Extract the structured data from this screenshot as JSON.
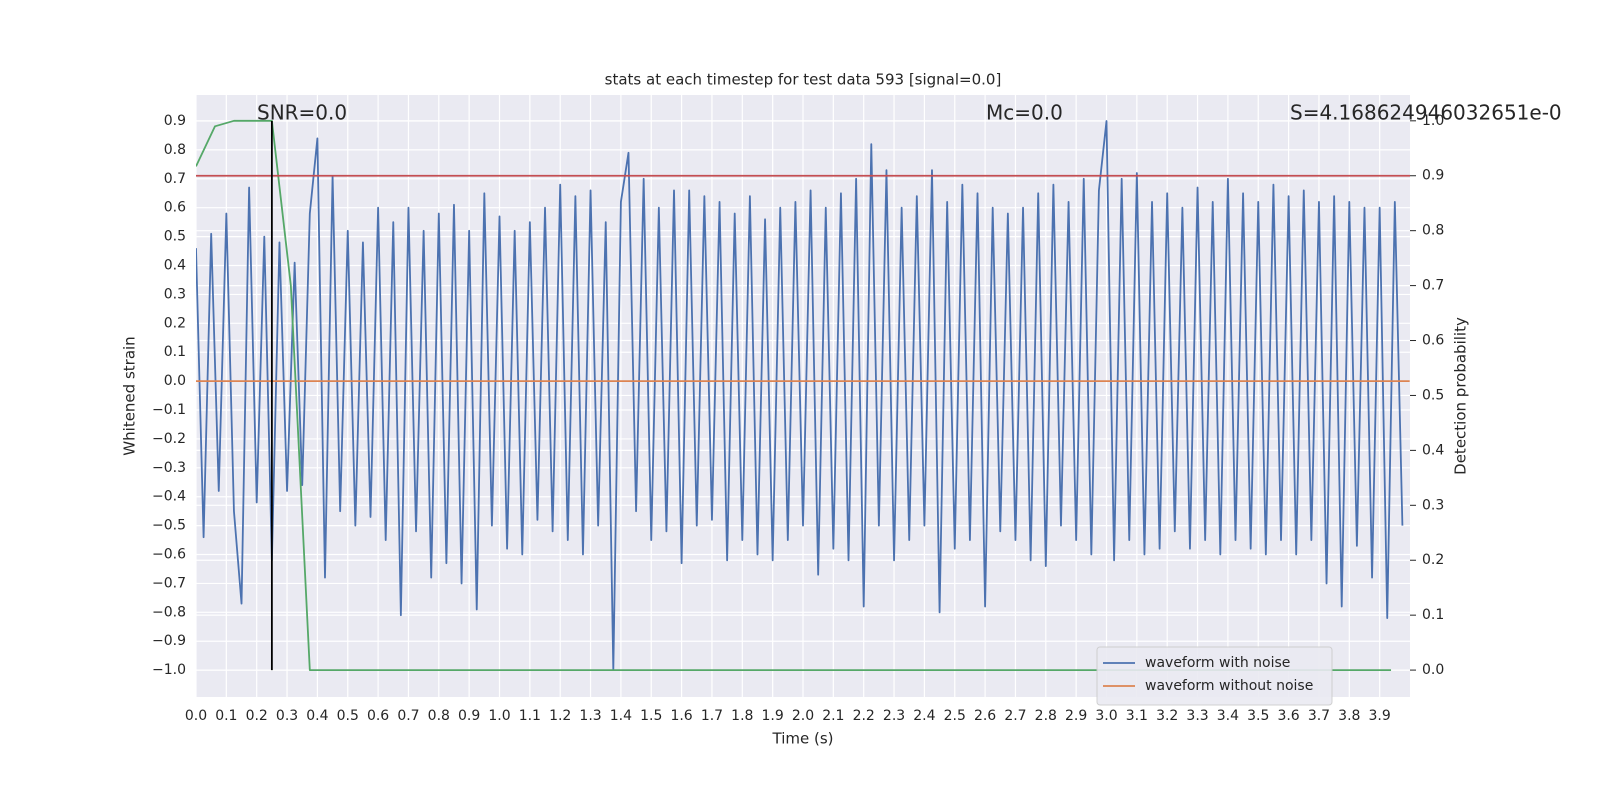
{
  "chart_data": {
    "type": "line",
    "title": "stats at each timestep for test data 593 [signal=0.0]",
    "xlabel": "Time (s)",
    "ylabel": "Whitened strain",
    "y2label": "Detection probability",
    "annotations": [
      {
        "text": "SNR=0.0"
      },
      {
        "text": "Mc=0.0"
      },
      {
        "text": "S=4.168624946032651e-0"
      }
    ],
    "xlim": [
      0,
      4.0
    ],
    "ylim": [
      -1.093,
      0.99
    ],
    "y2lim": [
      -0.049,
      1.047
    ],
    "xticks": [
      {
        "value": 0,
        "label": "0.0"
      },
      0.1,
      0.2,
      0.3,
      0.4,
      0.5,
      0.6,
      0.7,
      0.8,
      0.9,
      {
        "value": 1,
        "label": "1.0"
      },
      1.1,
      1.2,
      1.3,
      1.4,
      1.5,
      1.6,
      1.7,
      1.8,
      1.9,
      {
        "value": 2,
        "label": "2.0"
      },
      2.1,
      2.2,
      2.3,
      2.4,
      2.5,
      2.6,
      2.7,
      2.8,
      2.9,
      {
        "value": 3,
        "label": "3.0"
      },
      3.1,
      3.2,
      3.3,
      3.4,
      3.5,
      3.6,
      3.7,
      3.8,
      3.9
    ],
    "yticks": [
      {
        "value": -1,
        "label": "−1.0"
      },
      {
        "value": -0.9,
        "label": "−0.9"
      },
      {
        "value": -0.8,
        "label": "−0.8"
      },
      {
        "value": -0.7,
        "label": "−0.7"
      },
      {
        "value": -0.6,
        "label": "−0.6"
      },
      {
        "value": -0.5,
        "label": "−0.5"
      },
      {
        "value": -0.4,
        "label": "−0.4"
      },
      {
        "value": -0.3,
        "label": "−0.3"
      },
      {
        "value": -0.2,
        "label": "−0.2"
      },
      {
        "value": -0.1,
        "label": "−0.1"
      },
      {
        "value": 0,
        "label": "0.0"
      },
      0.1,
      0.2,
      0.3,
      0.4,
      0.5,
      0.6,
      0.7,
      0.8,
      0.9
    ],
    "y2ticks": [
      {
        "value": 0,
        "label": "0.0"
      },
      0.1,
      0.2,
      0.3,
      0.4,
      0.5,
      0.6,
      0.7,
      0.8,
      0.9,
      {
        "value": 1,
        "label": "1.0"
      }
    ],
    "grid": true,
    "legend": "lower right",
    "vline": {
      "x": 0.25,
      "ymin": -1.0,
      "ymax": 0.9,
      "color": "#000000"
    },
    "hline": {
      "y": 0.9,
      "axis": "y2",
      "color": "#c44e52"
    },
    "series": [
      {
        "name": "waveform with noise",
        "color": "#4c72b0",
        "x": [
          0,
          0.025,
          0.05,
          0.075,
          0.1,
          0.125,
          0.15,
          0.175,
          0.2,
          0.225,
          0.25,
          0.275,
          0.3,
          0.325,
          0.35,
          0.375,
          0.4,
          0.425,
          0.45,
          0.475,
          0.5,
          0.525,
          0.55,
          0.575,
          0.6,
          0.625,
          0.65,
          0.675,
          0.7,
          0.725,
          0.75,
          0.775,
          0.8,
          0.825,
          0.85,
          0.875,
          0.9,
          0.925,
          0.95,
          0.975,
          1,
          1.025,
          1.05,
          1.075,
          1.1,
          1.125,
          1.15,
          1.175,
          1.2,
          1.225,
          1.25,
          1.275,
          1.3,
          1.325,
          1.35,
          1.375,
          1.4,
          1.425,
          1.45,
          1.475,
          1.5,
          1.525,
          1.55,
          1.575,
          1.6,
          1.625,
          1.65,
          1.675,
          1.7,
          1.725,
          1.75,
          1.775,
          1.8,
          1.825,
          1.85,
          1.875,
          1.9,
          1.925,
          1.95,
          1.975,
          2,
          2.025,
          2.05,
          2.075,
          2.1,
          2.125,
          2.15,
          2.175,
          2.2,
          2.225,
          2.25,
          2.275,
          2.3,
          2.325,
          2.35,
          2.375,
          2.4,
          2.425,
          2.45,
          2.475,
          2.5,
          2.525,
          2.55,
          2.575,
          2.6,
          2.625,
          2.65,
          2.675,
          2.7,
          2.725,
          2.75,
          2.775,
          2.8,
          2.825,
          2.85,
          2.875,
          2.9,
          2.925,
          2.95,
          2.975,
          3,
          3.025,
          3.05,
          3.075,
          3.1,
          3.125,
          3.15,
          3.175,
          3.2,
          3.225,
          3.25,
          3.275,
          3.3,
          3.325,
          3.35,
          3.375,
          3.4,
          3.425,
          3.45,
          3.475,
          3.5,
          3.525,
          3.55,
          3.575,
          3.6,
          3.625,
          3.65,
          3.675,
          3.7,
          3.725,
          3.75,
          3.775,
          3.8,
          3.825,
          3.85,
          3.875,
          3.9,
          3.925,
          3.95,
          3.975
        ],
        "values": [
          0.46,
          -0.54,
          0.51,
          -0.38,
          0.58,
          -0.45,
          -0.77,
          0.67,
          -0.42,
          0.5,
          -0.62,
          0.48,
          -0.38,
          0.41,
          -0.36,
          0.58,
          0.84,
          -0.68,
          0.71,
          -0.45,
          0.52,
          -0.5,
          0.48,
          -0.47,
          0.6,
          -0.55,
          0.55,
          -0.81,
          0.6,
          -0.52,
          0.52,
          -0.68,
          0.58,
          -0.63,
          0.61,
          -0.7,
          0.52,
          -0.79,
          0.65,
          -0.5,
          0.57,
          -0.58,
          0.52,
          -0.6,
          0.55,
          -0.48,
          0.6,
          -0.52,
          0.68,
          -0.55,
          0.64,
          -0.6,
          0.66,
          -0.5,
          0.55,
          -1.0,
          0.62,
          0.79,
          -0.45,
          0.7,
          -0.55,
          0.6,
          -0.52,
          0.66,
          -0.63,
          0.66,
          -0.5,
          0.64,
          -0.48,
          0.62,
          -0.62,
          0.58,
          -0.55,
          0.64,
          -0.6,
          0.56,
          -0.62,
          0.6,
          -0.55,
          0.62,
          -0.5,
          0.66,
          -0.67,
          0.6,
          -0.58,
          0.65,
          -0.62,
          0.7,
          -0.78,
          0.82,
          -0.5,
          0.73,
          -0.62,
          0.6,
          -0.55,
          0.64,
          -0.5,
          0.73,
          -0.8,
          0.62,
          -0.58,
          0.68,
          -0.55,
          0.65,
          -0.78,
          0.6,
          -0.52,
          0.58,
          -0.55,
          0.6,
          -0.62,
          0.65,
          -0.64,
          0.68,
          -0.5,
          0.62,
          -0.55,
          0.7,
          -0.6,
          0.66,
          0.9,
          -0.62,
          0.7,
          -0.55,
          0.72,
          -0.6,
          0.62,
          -0.58,
          0.65,
          -0.52,
          0.6,
          -0.58,
          0.67,
          -0.55,
          0.62,
          -0.6,
          0.7,
          -0.55,
          0.65,
          -0.58,
          0.62,
          -0.6,
          0.68,
          -0.55,
          0.64,
          -0.6,
          0.66,
          -0.55,
          0.62,
          -0.7,
          0.64,
          -0.78,
          0.62,
          -0.57,
          0.6,
          -0.68,
          0.6,
          -0.82,
          0.62,
          -0.5
        ]
      },
      {
        "name": "waveform without noise",
        "color": "#dd8452",
        "x": [
          0,
          3.999
        ],
        "values": [
          0,
          0
        ]
      },
      {
        "color": "#55a868",
        "axis": "y2",
        "x": [
          0,
          0.0625,
          0.125,
          0.1875,
          0.25,
          0.3125,
          0.375,
          3.9375
        ],
        "values": [
          0.917,
          0.99,
          1.0,
          1.0,
          1.0,
          0.7,
          0.0,
          0.0
        ]
      }
    ]
  }
}
